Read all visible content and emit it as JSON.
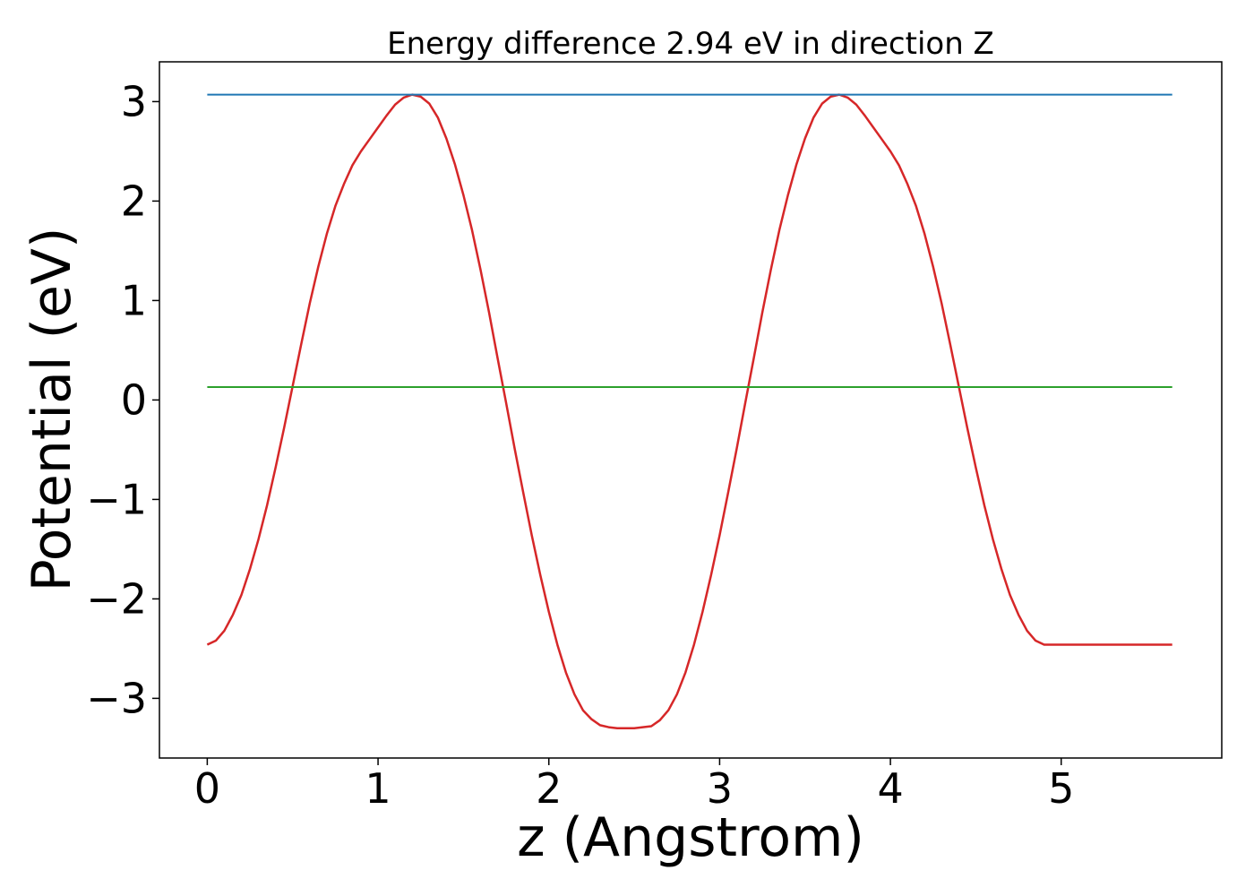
{
  "chart_data": {
    "type": "line",
    "title": "Energy difference 2.94 eV in direction Z",
    "xlabel": "z (Angstrom)",
    "ylabel": "Potential (eV)",
    "xlim": [
      -0.28,
      5.94
    ],
    "ylim": [
      -3.6,
      3.4
    ],
    "xticks": [
      0,
      1,
      2,
      3,
      4,
      5
    ],
    "xtick_labels": [
      "0",
      "1",
      "2",
      "3",
      "4",
      "5"
    ],
    "yticks": [
      3,
      2,
      1,
      0,
      -1,
      -2,
      -3
    ],
    "ytick_labels": [
      "3",
      "2",
      "1",
      "0",
      "−1",
      "−2",
      "−3"
    ],
    "grid": false,
    "series": [
      {
        "color": "#d62728",
        "x": [
          0,
          0.05,
          0.1,
          0.15,
          0.2,
          0.25,
          0.3,
          0.35,
          0.4,
          0.45,
          0.5,
          0.55,
          0.6,
          0.65,
          0.7,
          0.75,
          0.8,
          0.85,
          0.9,
          0.95,
          1.0,
          1.05,
          1.1,
          1.15,
          1.2,
          1.25,
          1.3,
          1.35,
          1.4,
          1.45,
          1.5,
          1.55,
          1.6,
          1.65,
          1.7,
          1.75,
          1.8,
          1.85,
          1.9,
          1.95,
          2.0,
          2.05,
          2.1,
          2.15,
          2.2,
          2.25,
          2.3,
          2.35,
          2.4,
          2.45,
          2.5,
          2.55,
          2.6,
          2.65,
          2.7,
          2.75,
          2.8,
          2.85,
          2.9,
          2.95,
          3.0,
          3.05,
          3.1,
          3.15,
          3.2,
          3.25,
          3.3,
          3.35,
          3.4,
          3.45,
          3.5,
          3.55,
          3.6,
          3.65,
          3.7,
          3.75,
          3.8,
          3.85,
          3.9,
          3.95,
          4.0,
          4.05,
          4.1,
          4.15,
          4.2,
          4.25,
          4.3,
          4.35,
          4.4,
          4.45,
          4.5,
          4.55,
          4.6,
          4.65,
          4.7,
          4.75,
          4.8,
          4.85,
          4.9,
          4.95,
          5.0,
          5.05,
          5.1,
          5.15,
          5.2,
          5.25,
          5.3,
          5.35,
          5.4,
          5.45,
          5.5,
          5.55,
          5.6,
          5.65
        ],
        "y": [
          -2.46,
          -2.42,
          -2.32,
          -2.16,
          -1.96,
          -1.7,
          -1.4,
          -1.06,
          -0.68,
          -0.28,
          0.14,
          0.56,
          0.97,
          1.34,
          1.67,
          1.95,
          2.17,
          2.36,
          2.5,
          2.62,
          2.74,
          2.86,
          2.97,
          3.04,
          3.07,
          3.05,
          2.98,
          2.84,
          2.63,
          2.37,
          2.06,
          1.71,
          1.31,
          0.88,
          0.42,
          -0.03,
          -0.49,
          -0.93,
          -1.36,
          -1.76,
          -2.13,
          -2.46,
          -2.74,
          -2.96,
          -3.12,
          -3.21,
          -3.27,
          -3.29,
          -3.3,
          -3.3,
          -3.3,
          -3.29,
          -3.28,
          -3.22,
          -3.12,
          -2.96,
          -2.74,
          -2.46,
          -2.13,
          -1.76,
          -1.36,
          -0.93,
          -0.49,
          -0.03,
          0.42,
          0.88,
          1.31,
          1.71,
          2.06,
          2.37,
          2.63,
          2.84,
          2.98,
          3.05,
          3.07,
          3.04,
          2.97,
          2.86,
          2.74,
          2.62,
          2.5,
          2.36,
          2.17,
          1.95,
          1.67,
          1.34,
          0.97,
          0.56,
          0.14,
          -0.28,
          -0.68,
          -1.06,
          -1.4,
          -1.7,
          -1.96,
          -2.16,
          -2.32,
          -2.42,
          -2.46,
          -2.46,
          -2.46,
          -2.46,
          -2.46,
          -2.46,
          -2.46,
          -2.46,
          -2.46,
          -2.46,
          -2.46,
          -2.46,
          -2.46,
          -2.46,
          -2.46,
          -2.46
        ]
      },
      {
        "color": "#1f77b4",
        "x": [
          0,
          5.65
        ],
        "y": [
          3.07,
          3.07
        ]
      },
      {
        "color": "#2ca02c",
        "x": [
          0,
          5.65
        ],
        "y": [
          0.13,
          0.13
        ]
      }
    ]
  }
}
